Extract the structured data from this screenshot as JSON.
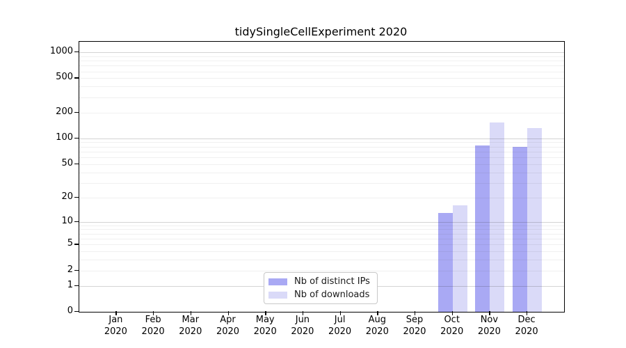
{
  "chart_data": {
    "type": "bar",
    "title": "tidySingleCellExperiment 2020",
    "x_months": [
      "Jan",
      "Feb",
      "Mar",
      "Apr",
      "May",
      "Jun",
      "Jul",
      "Aug",
      "Sep",
      "Oct",
      "Nov",
      "Dec"
    ],
    "x_year": "2020",
    "yticks": [
      0,
      1,
      2,
      5,
      10,
      20,
      50,
      100,
      200,
      500,
      1000
    ],
    "y_scale": "log1p",
    "ylim": [
      0,
      1300
    ],
    "grid": "horizontal major+minor",
    "legend_position": "inside-bottom-center",
    "series": [
      {
        "name": "Nb of distinct IPs",
        "color": "#a9a9f4",
        "values": [
          0,
          0,
          0,
          0,
          0,
          0,
          0,
          0,
          0,
          13,
          82,
          80
        ]
      },
      {
        "name": "Nb of downloads",
        "color": "#dadaf8",
        "values": [
          0,
          0,
          0,
          0,
          0,
          0,
          0,
          0,
          0,
          16,
          154,
          131
        ]
      }
    ]
  },
  "colors": {
    "background": "#ffffff",
    "frame": "#000000",
    "major_grid": "#cccccc",
    "minor_grid": "#efefef",
    "text": "#000000",
    "legend_border": "#c8c8c8"
  }
}
